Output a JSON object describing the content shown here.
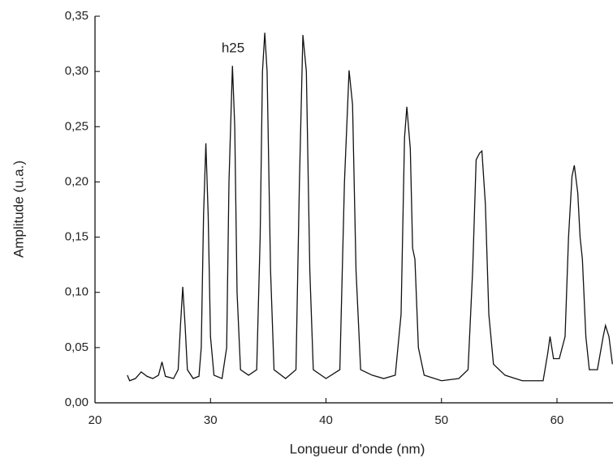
{
  "chart_data": {
    "type": "line",
    "xlabel": "Longueur d'onde (nm)",
    "ylabel": "Amplitude (u.a.)",
    "annotation": "h25",
    "xlim": [
      20,
      64.85
    ],
    "ylim": [
      0,
      0.35
    ],
    "xticks": [
      20,
      30,
      40,
      50,
      60
    ],
    "yticks": [
      {
        "value": 0,
        "label": "0,00"
      },
      {
        "value": 0.05,
        "label": "0,05"
      },
      {
        "value": 0.1,
        "label": "0,10"
      },
      {
        "value": 0.15,
        "label": "0,15"
      },
      {
        "value": 0.2,
        "label": "0,20"
      },
      {
        "value": 0.25,
        "label": "0,25"
      },
      {
        "value": 0.3,
        "label": "0,30"
      },
      {
        "value": 0.35,
        "label": "0,35"
      }
    ],
    "color": "#111111",
    "x": [
      22.8,
      23.0,
      23.5,
      24.0,
      24.5,
      25.0,
      25.5,
      25.8,
      26.1,
      26.8,
      27.2,
      27.4,
      27.6,
      27.8,
      28.0,
      28.5,
      29.0,
      29.2,
      29.4,
      29.6,
      29.8,
      30.0,
      30.3,
      31.0,
      31.4,
      31.6,
      31.9,
      32.1,
      32.3,
      32.6,
      33.3,
      34.0,
      34.3,
      34.5,
      34.7,
      34.9,
      35.2,
      35.5,
      36.5,
      37.4,
      37.7,
      38.0,
      38.3,
      38.6,
      38.9,
      40.0,
      41.2,
      41.6,
      42.0,
      42.3,
      42.6,
      43.0,
      44.0,
      45.0,
      46.0,
      46.5,
      46.8,
      47.0,
      47.3,
      47.5,
      47.7,
      48.0,
      48.5,
      50.0,
      51.5,
      52.3,
      52.7,
      53.0,
      53.3,
      53.5,
      53.8,
      54.1,
      54.5,
      55.5,
      57.0,
      58.8,
      59.2,
      59.4,
      59.7,
      60.2,
      60.7,
      61.0,
      61.3,
      61.5,
      61.8,
      62.0,
      62.2,
      62.5,
      62.8,
      63.5,
      64.0,
      64.2,
      64.5,
      64.8
    ],
    "values": [
      0.025,
      0.02,
      0.022,
      0.028,
      0.024,
      0.022,
      0.025,
      0.037,
      0.024,
      0.022,
      0.03,
      0.07,
      0.105,
      0.07,
      0.03,
      0.022,
      0.024,
      0.05,
      0.17,
      0.235,
      0.17,
      0.06,
      0.025,
      0.022,
      0.05,
      0.2,
      0.305,
      0.25,
      0.1,
      0.03,
      0.025,
      0.03,
      0.15,
      0.3,
      0.335,
      0.3,
      0.12,
      0.03,
      0.022,
      0.03,
      0.2,
      0.333,
      0.3,
      0.12,
      0.03,
      0.022,
      0.03,
      0.2,
      0.301,
      0.27,
      0.12,
      0.03,
      0.025,
      0.022,
      0.025,
      0.08,
      0.24,
      0.268,
      0.23,
      0.14,
      0.13,
      0.05,
      0.025,
      0.02,
      0.022,
      0.03,
      0.12,
      0.22,
      0.226,
      0.228,
      0.18,
      0.08,
      0.035,
      0.025,
      0.02,
      0.02,
      0.045,
      0.06,
      0.04,
      0.04,
      0.06,
      0.15,
      0.205,
      0.215,
      0.19,
      0.15,
      0.13,
      0.06,
      0.03,
      0.03,
      0.06,
      0.07,
      0.06,
      0.035
    ]
  }
}
